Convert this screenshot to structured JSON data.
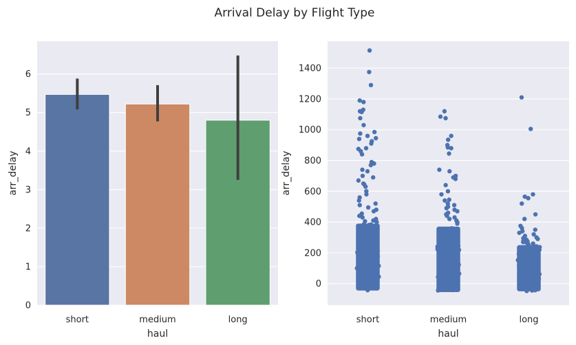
{
  "figure": {
    "suptitle": "Arrival Delay by Flight Type",
    "background": "#ffffff",
    "axes_facecolor": "#eaeaf2",
    "grid_color": "#ffffff"
  },
  "chart_data": [
    {
      "type": "bar",
      "title": "",
      "xlabel": "haul",
      "ylabel": "arr_delay",
      "categories": [
        "short",
        "medium",
        "long"
      ],
      "values": [
        5.47,
        5.22,
        4.8
      ],
      "ci_low": [
        5.08,
        4.77,
        3.25
      ],
      "ci_high": [
        5.88,
        5.71,
        6.48
      ],
      "colors": [
        "#5875a4",
        "#cc8963",
        "#5f9e6e"
      ],
      "errorbar_color": "#3f3f3f",
      "ylim": [
        0,
        6.85
      ],
      "yticks": [
        0,
        1,
        2,
        3,
        4,
        5,
        6
      ],
      "grid": true
    },
    {
      "type": "scatter",
      "subtype": "stripplot",
      "title": "",
      "xlabel": "haul",
      "ylabel": "arr_delay",
      "categories": [
        "short",
        "medium",
        "long"
      ],
      "point_color": "#4c72b0",
      "ylim": [
        -140,
        1575
      ],
      "yticks": [
        0,
        200,
        400,
        600,
        800,
        1000,
        1200,
        1400
      ],
      "grid": true,
      "dense_band": [
        {
          "category": "short",
          "min": -45,
          "max": 390
        },
        {
          "category": "medium",
          "min": -55,
          "max": 370
        },
        {
          "category": "long",
          "min": -50,
          "max": 250
        }
      ],
      "outliers": [
        {
          "category": "short",
          "y": [
            1515,
            1375,
            1290,
            1190,
            1180,
            1130,
            1120,
            1115,
            1075,
            1030,
            985,
            975,
            960,
            945,
            940,
            925,
            910,
            880,
            875,
            860,
            840,
            790,
            780,
            770,
            740,
            730,
            700,
            690,
            670,
            650,
            645,
            630,
            600,
            580,
            560,
            540,
            520,
            510,
            495,
            480,
            470,
            455,
            440,
            430,
            420,
            410,
            405,
            400
          ]
        },
        {
          "category": "medium",
          "y": [
            1120,
            1085,
            1075,
            960,
            935,
            900,
            885,
            880,
            845,
            740,
            730,
            700,
            690,
            680,
            640,
            600,
            580,
            545,
            540,
            520,
            510,
            500,
            490,
            480,
            470,
            460,
            450,
            440,
            430,
            420,
            410,
            400,
            390
          ]
        },
        {
          "category": "long",
          "y": [
            1210,
            1005,
            580,
            565,
            555,
            520,
            450,
            420,
            375,
            360,
            350,
            340,
            330,
            320,
            310,
            300,
            295,
            290,
            285,
            280,
            275,
            270,
            265,
            260,
            255
          ]
        }
      ]
    }
  ]
}
